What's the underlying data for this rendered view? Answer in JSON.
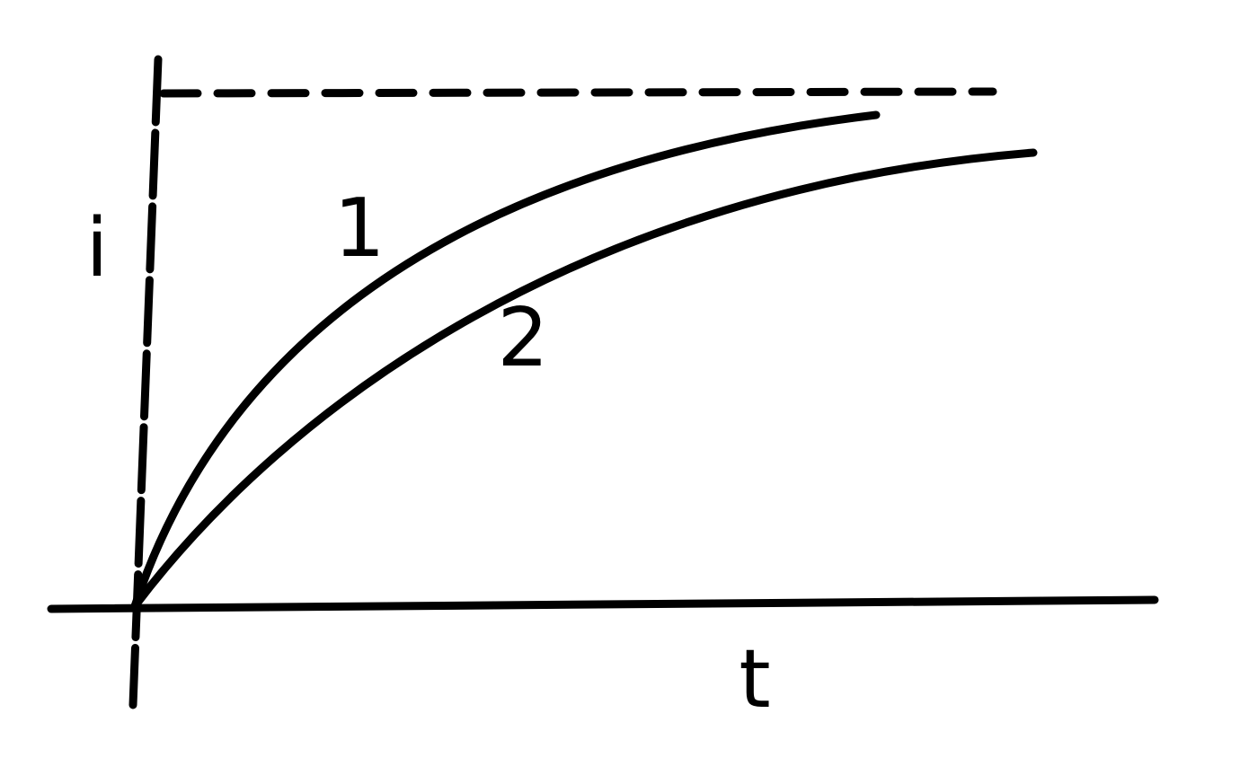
{
  "axes": {
    "y_label": "i",
    "x_label": "t"
  },
  "curves": [
    {
      "label": "1"
    },
    {
      "label": "2"
    }
  ]
}
